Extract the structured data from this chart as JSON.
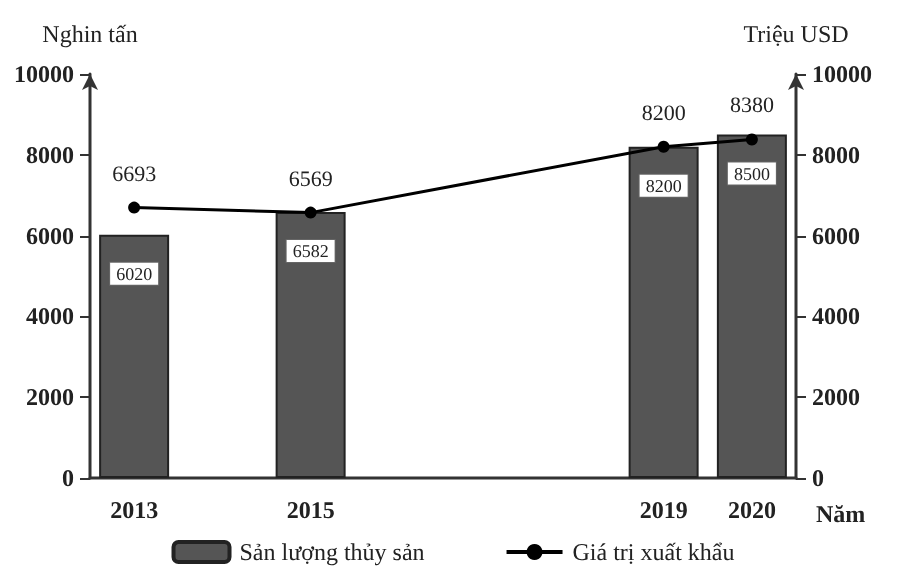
{
  "chart_data": {
    "type": "bar",
    "x": [
      2013,
      2015,
      2019,
      2020
    ],
    "xlim": [
      2012.5,
      2020.5
    ],
    "xticks": [
      2013,
      2015,
      2019,
      2020
    ],
    "xlabel": "Năm",
    "ylabel": "Nghin tấn",
    "y2label": "Triệu USD",
    "ylim": [
      0,
      10000
    ],
    "yticks": [
      0,
      2000,
      4000,
      6000,
      8000,
      10000
    ],
    "y2lim": [
      0,
      10000
    ],
    "y2ticks": [
      0,
      2000,
      4000,
      6000,
      8000,
      10000
    ],
    "grid": false,
    "legend": "bottom",
    "data_labels": true,
    "marker": "circle",
    "line_style": "solid",
    "series": [
      {
        "name": "Sản lượng thủy sản",
        "color": "#555555",
        "values": [
          6020,
          6582,
          8200,
          8500
        ]
      },
      {
        "name": "Giá trị xuất khẩu",
        "type": "line",
        "axis": "y2",
        "color": "#000000",
        "values": [
          6693,
          6569,
          8200,
          8380
        ]
      }
    ]
  }
}
